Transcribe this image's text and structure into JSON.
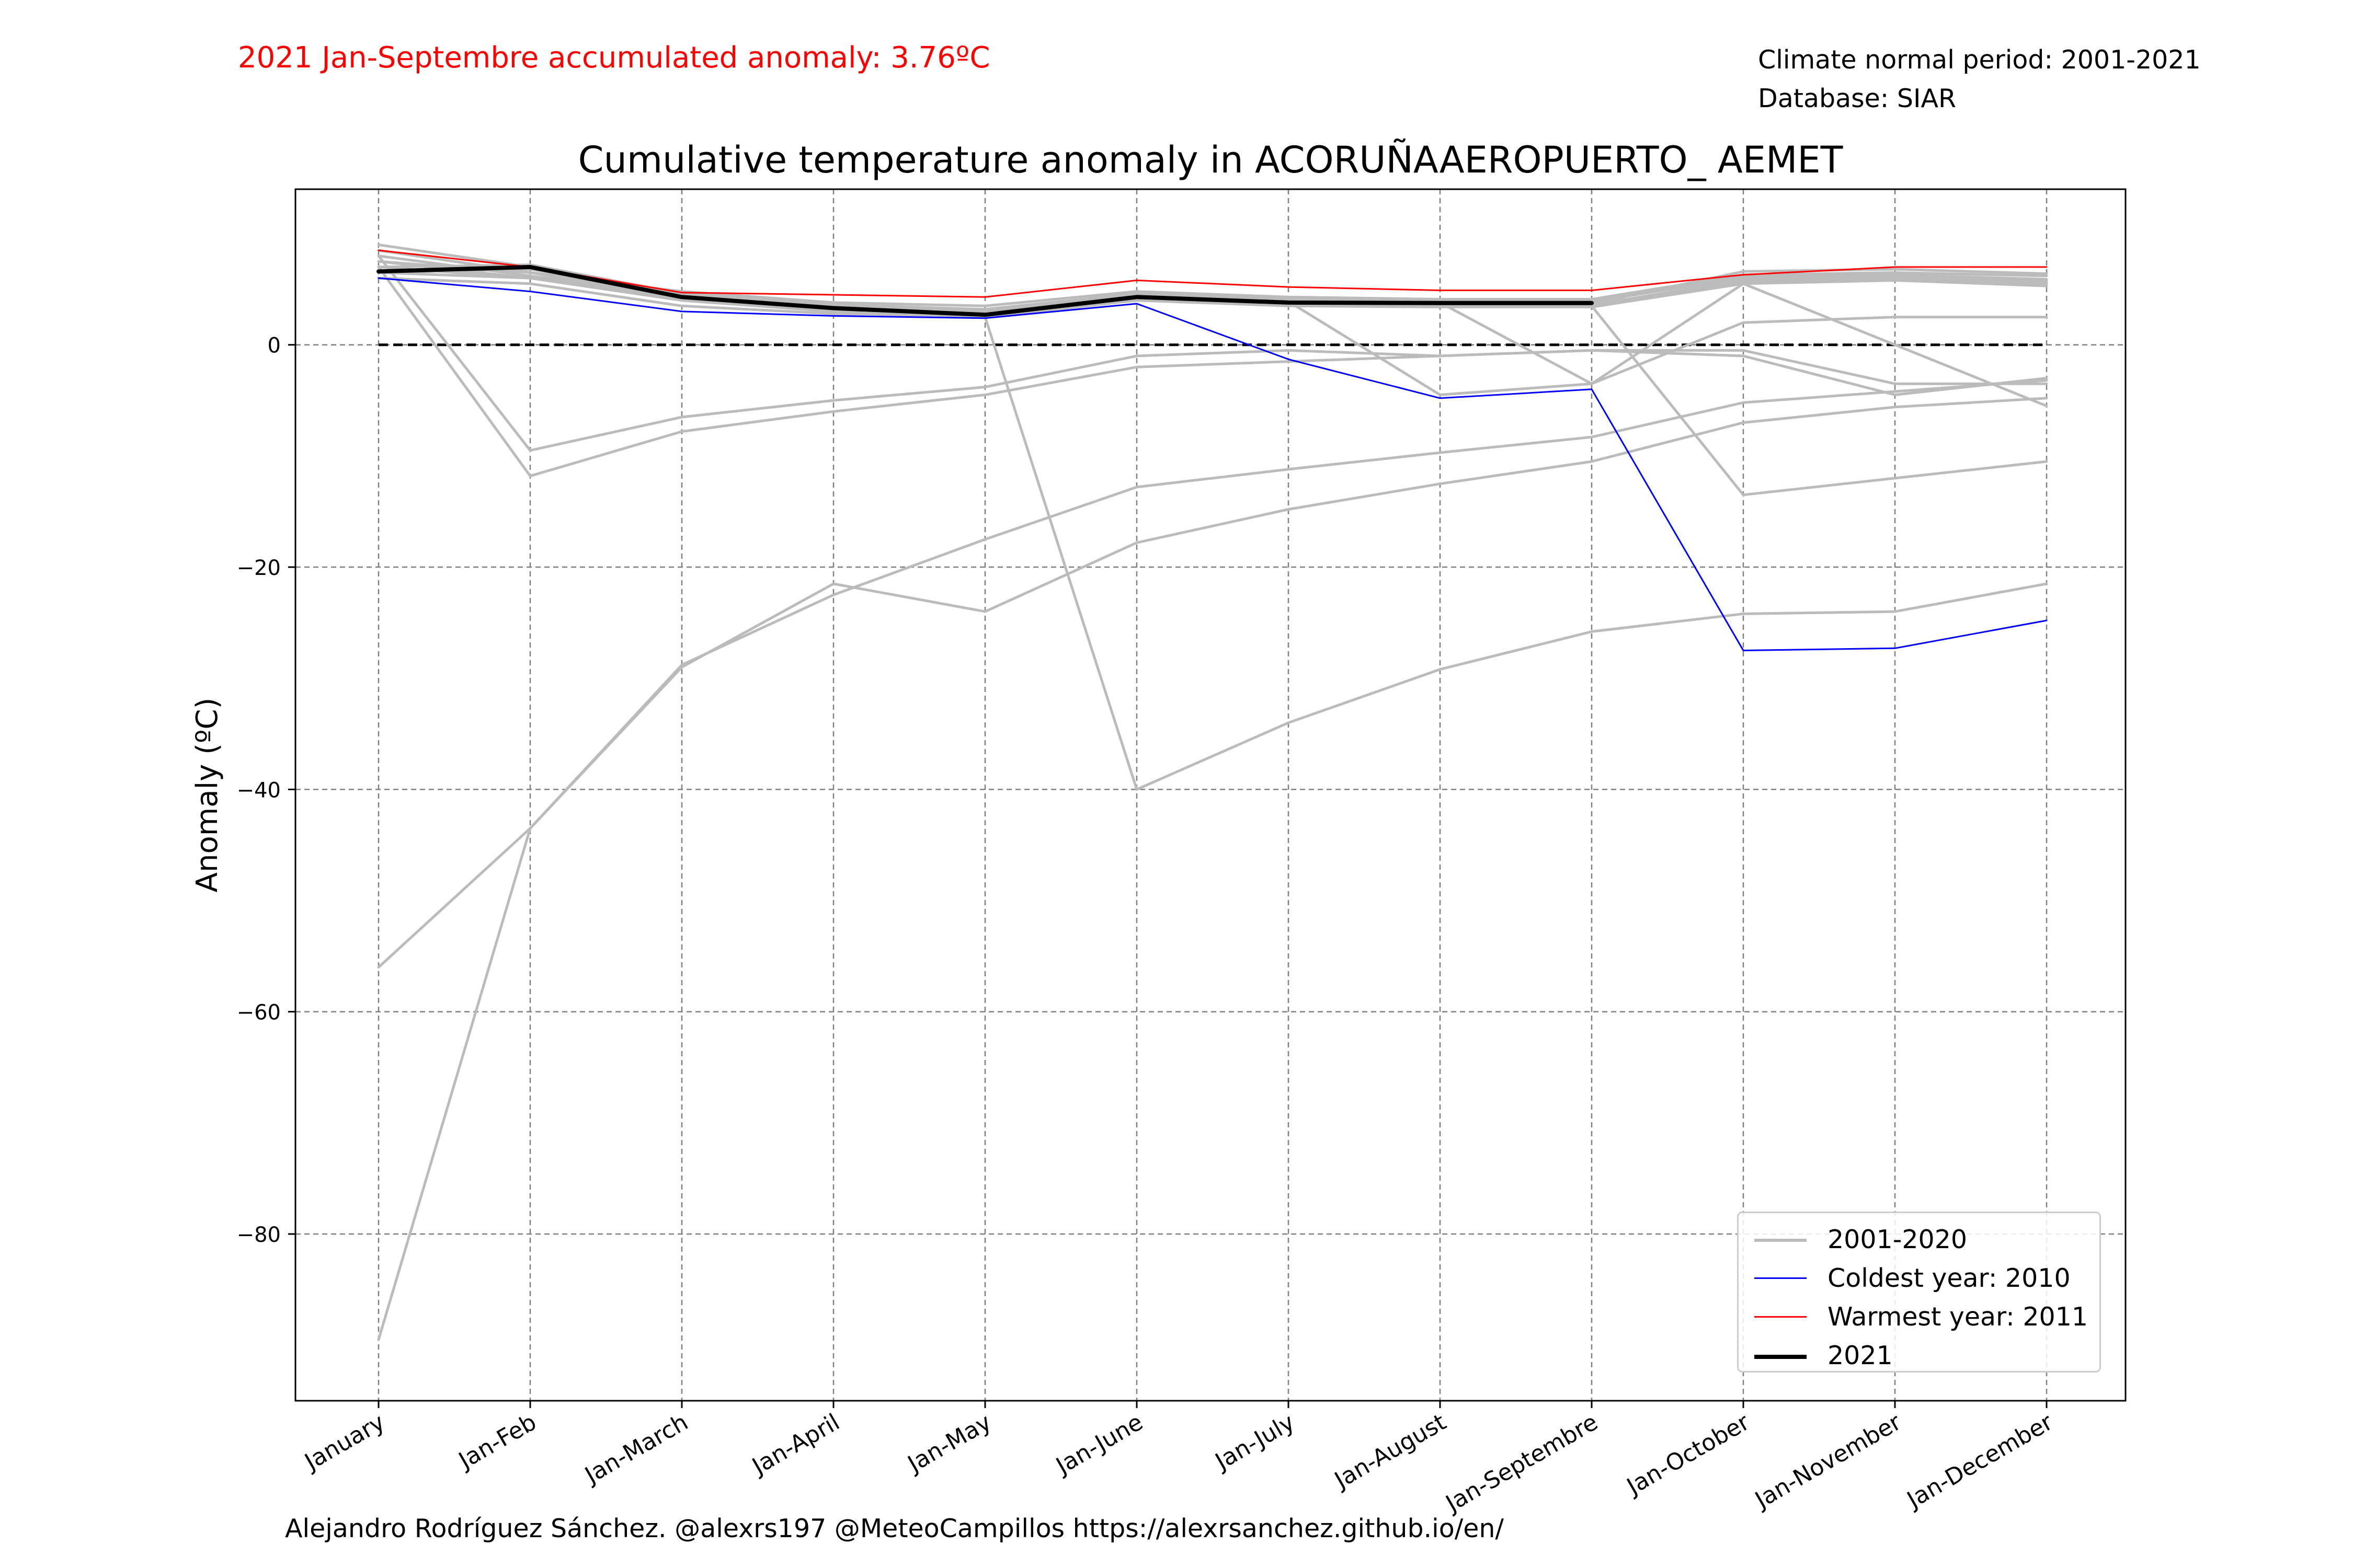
{
  "header": {
    "anomaly_text": "2021 Jan-Septembre accumulated anomaly: 3.76ºC",
    "normal_period": "Climate normal period: 2001-2021",
    "database": "Database: SIAR"
  },
  "footer": {
    "credits": "Alejandro Rodríguez Sánchez. @alexrs197 @MeteoCampillos   https://alexrsanchez.github.io/en/"
  },
  "colors": {
    "historical": "#bbbbbb",
    "coldest": "#0000ff",
    "warmest": "#ff0000",
    "current": "#000000",
    "grid": "#808080"
  },
  "legend": [
    {
      "label": "2001-2020",
      "color": "#bbbbbb",
      "width": "gray"
    },
    {
      "label": "Coldest year: 2010",
      "color": "#0000ff",
      "width": "thin"
    },
    {
      "label": "Warmest year: 2011",
      "color": "#ff0000",
      "width": "thin"
    },
    {
      "label": "2021",
      "color": "#000000",
      "width": "thick"
    }
  ],
  "chart_data": {
    "type": "line",
    "title": "Cumulative temperature anomaly in ACORUÑAAEROPUERTO_ AEMET",
    "xlabel": "",
    "ylabel": "Anomaly (ºC)",
    "categories": [
      "January",
      "Jan-Feb",
      "Jan-March",
      "Jan-April",
      "Jan-May",
      "Jan-June",
      "Jan-July",
      "Jan-August",
      "Jan-Septembre",
      "Jan-October",
      "Jan-November",
      "Jan-December"
    ],
    "ylim": [
      -95,
      14
    ],
    "yticks": [
      0,
      -20,
      -40,
      -60,
      -80
    ],
    "grid": true,
    "legend_position": "lower right",
    "reference_line": 0,
    "series": [
      {
        "group": "historical",
        "values": [
          6.5,
          6.8,
          4.5,
          3.5,
          3.0,
          4.5,
          4.0,
          3.9,
          3.9,
          6.0,
          6.2,
          5.8
        ]
      },
      {
        "group": "historical",
        "values": [
          7.5,
          6.0,
          4.2,
          3.0,
          2.8,
          4.2,
          3.8,
          3.6,
          3.6,
          5.8,
          6.0,
          5.6
        ]
      },
      {
        "group": "historical",
        "values": [
          8.5,
          6.5,
          4.8,
          3.8,
          3.5,
          4.8,
          4.3,
          4.1,
          4.1,
          6.3,
          6.5,
          6.2
        ]
      },
      {
        "group": "historical",
        "values": [
          9.0,
          7.0,
          4.0,
          3.2,
          2.5,
          4.0,
          3.5,
          3.4,
          3.4,
          5.5,
          5.8,
          5.3
        ]
      },
      {
        "group": "historical",
        "values": [
          6.0,
          5.5,
          3.5,
          2.8,
          2.6,
          4.4,
          4.0,
          3.7,
          3.7,
          6.6,
          6.8,
          6.4
        ]
      },
      {
        "group": "historical",
        "values": [
          7.0,
          7.2,
          4.6,
          3.6,
          3.2,
          4.6,
          4.2,
          4.0,
          4.0,
          6.1,
          6.3,
          5.9
        ]
      },
      {
        "group": "historical",
        "values": [
          8.0,
          6.2,
          4.4,
          3.3,
          2.9,
          4.1,
          3.7,
          3.5,
          3.5,
          5.7,
          5.9,
          5.5
        ]
      },
      {
        "group": "historical",
        "values": [
          6.5,
          6.8,
          4.5,
          3.5,
          3.0,
          4.5,
          4.0,
          3.8,
          -3.5,
          5.5,
          0.0,
          -5.5
        ]
      },
      {
        "group": "historical",
        "values": [
          7.5,
          6.5,
          4.2,
          3.2,
          2.8,
          4.3,
          3.9,
          -4.5,
          -3.5,
          2.0,
          2.5,
          2.5
        ]
      },
      {
        "group": "historical",
        "values": [
          7.0,
          6.0,
          4.0,
          3.0,
          2.6,
          4.0,
          3.6,
          3.5,
          3.5,
          -13.5,
          -12.0,
          -10.5
        ]
      },
      {
        "group": "historical",
        "values": [
          8.0,
          -9.5,
          -6.5,
          -5.0,
          -3.8,
          -1.0,
          -0.5,
          -1.0,
          -0.5,
          -1.0,
          -4.5,
          -3.0
        ]
      },
      {
        "group": "historical",
        "values": [
          7.0,
          -11.8,
          -7.8,
          -6.0,
          -4.5,
          -2.0,
          -1.5,
          -1.0,
          -0.5,
          -0.5,
          -3.5,
          -3.5
        ]
      },
      {
        "group": "historical",
        "values": [
          -56.0,
          -43.5,
          -28.8,
          -22.5,
          -17.5,
          -12.8,
          -11.2,
          -9.7,
          -8.3,
          -5.2,
          -4.2,
          -3.2
        ]
      },
      {
        "group": "historical",
        "values": [
          -89.5,
          -43.5,
          -29.0,
          -21.5,
          -24.0,
          -17.8,
          -14.8,
          -12.5,
          -10.5,
          -7.0,
          -5.6,
          -4.8
        ]
      },
      {
        "group": "historical",
        "values": [
          6.5,
          6.0,
          4.0,
          3.0,
          2.5,
          -40.0,
          -34.0,
          -29.2,
          -25.8,
          -24.2,
          -24.0,
          -21.5
        ]
      },
      {
        "group": "coldest",
        "name": "Coldest year: 2010",
        "values": [
          6.0,
          4.8,
          3.0,
          2.6,
          2.4,
          3.7,
          -1.3,
          -4.8,
          -4.0,
          -27.5,
          -27.3,
          -24.8
        ]
      },
      {
        "group": "warmest",
        "name": "Warmest year: 2011",
        "values": [
          8.5,
          7.0,
          4.7,
          4.5,
          4.3,
          5.8,
          5.2,
          4.9,
          4.9,
          6.3,
          7.0,
          7.0
        ]
      },
      {
        "group": "current",
        "name": "2021",
        "values": [
          6.6,
          7.0,
          4.3,
          3.3,
          2.7,
          4.3,
          3.8,
          3.76,
          3.76,
          null,
          null,
          null
        ]
      }
    ]
  }
}
